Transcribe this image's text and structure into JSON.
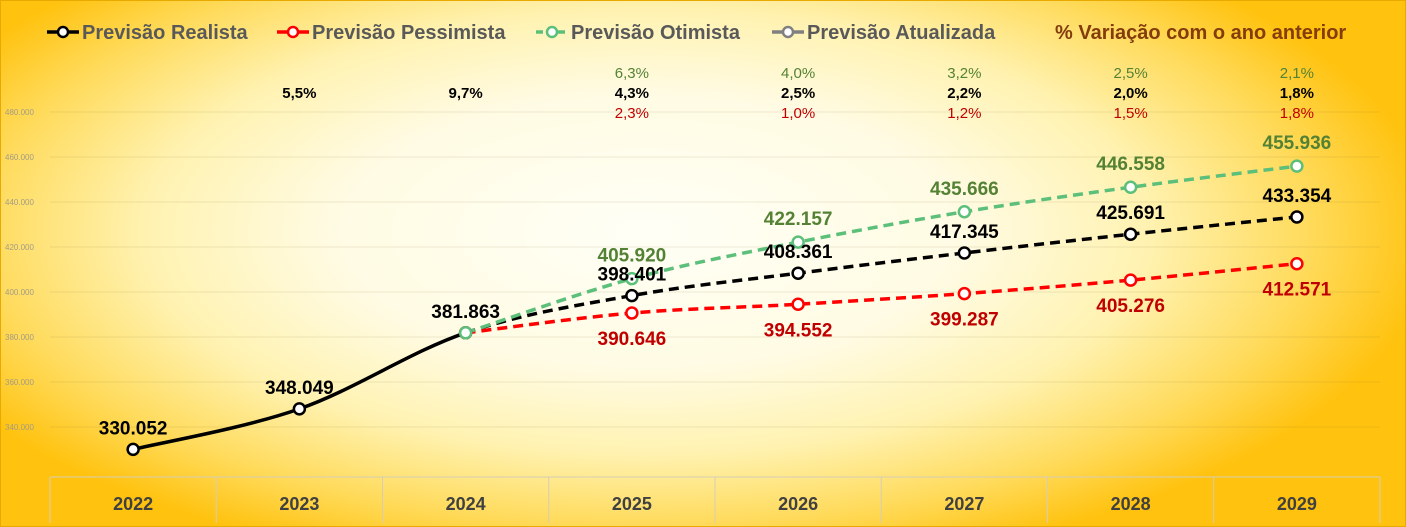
{
  "chart_data": {
    "type": "line",
    "categories": [
      "2022",
      "2023",
      "2024",
      "2025",
      "2026",
      "2027",
      "2028",
      "2029"
    ],
    "ylim": [
      320000,
      480000
    ],
    "y_ticks": [
      340000,
      360000,
      380000,
      400000,
      420000,
      440000,
      460000,
      480000
    ],
    "grid": true,
    "legend_position": "top",
    "variation_legend": "% Variação com o ano anterior",
    "variation_legend_color": "#843c0c",
    "series": [
      {
        "name": "Previsão Realista",
        "color": "#000000",
        "label_color": "#000000",
        "line_style": "solid",
        "dashed_from": "2024",
        "values": [
          330052,
          348049,
          381863,
          398401,
          408361,
          417345,
          425691,
          433354
        ],
        "variation_pct": [
          null,
          5.5,
          9.7,
          4.3,
          2.5,
          2.2,
          2.0,
          1.8
        ]
      },
      {
        "name": "Previsão Pessimista",
        "color": "#ff0000",
        "label_color": "#c00000",
        "line_style": "dashed",
        "values": [
          null,
          null,
          381863,
          390646,
          394552,
          399287,
          405276,
          412571
        ],
        "variation_pct": [
          null,
          null,
          null,
          2.3,
          1.0,
          1.2,
          1.5,
          1.8
        ]
      },
      {
        "name": "Previsão Otimista",
        "color": "#5cbf7a",
        "label_color": "#548235",
        "line_style": "dashed",
        "values": [
          null,
          null,
          381863,
          405920,
          422157,
          435666,
          446558,
          455936
        ],
        "variation_pct": [
          null,
          null,
          null,
          6.3,
          4.0,
          3.2,
          2.5,
          2.1
        ]
      },
      {
        "name": "Previsão Atualizada",
        "color": "#808080",
        "label_color": "#808080",
        "line_style": "solid",
        "values": [
          null,
          null,
          null,
          null,
          null,
          null,
          null,
          null
        ],
        "variation_pct": []
      }
    ]
  },
  "legend_text_color": "#595959"
}
